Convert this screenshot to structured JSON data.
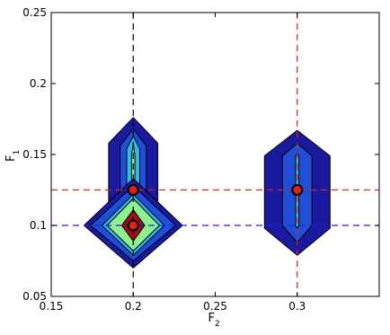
{
  "chart_data": {
    "type": "contour",
    "title": "",
    "xlabel": {
      "base": "F",
      "sub": "2"
    },
    "ylabel": {
      "base": "F",
      "sub": "1"
    },
    "xlim": [
      0.15,
      0.35
    ],
    "ylim": [
      0.05,
      0.25
    ],
    "x_ticks": [
      0.15,
      0.2,
      0.25,
      0.3
    ],
    "x_tick_labels": [
      "0.15",
      "0.2",
      "0.25",
      "0.3"
    ],
    "y_ticks": [
      0.05,
      0.1,
      0.15,
      0.2,
      0.25
    ],
    "y_tick_labels": [
      "0.05",
      "0.1",
      "0.15",
      "0.2",
      "0.25"
    ],
    "grid": false,
    "reference_lines": [
      {
        "orientation": "vertical",
        "value": 0.2,
        "color": "#000000",
        "style": "dashed"
      },
      {
        "orientation": "vertical",
        "value": 0.3,
        "color": "#e0201b",
        "style": "dashed"
      },
      {
        "orientation": "horizontal",
        "value": 0.125,
        "color": "#e0201b",
        "style": "dashed"
      },
      {
        "orientation": "horizontal",
        "value": 0.1,
        "color": "#2020d0",
        "style": "dashed"
      }
    ],
    "contour_groups": [
      {
        "name": "left-upper",
        "center": [
          0.2,
          0.125
        ],
        "levels": [
          {
            "fill": "#1a1aa0",
            "points": [
              [
                0.2,
                0.176
              ],
              [
                0.215,
                0.158
              ],
              [
                0.215,
                0.095
              ],
              [
                0.2,
                0.077
              ],
              [
                0.185,
                0.095
              ],
              [
                0.185,
                0.158
              ]
            ]
          },
          {
            "fill": "#1f4fd8",
            "points": [
              [
                0.2,
                0.168
              ],
              [
                0.208,
                0.156
              ],
              [
                0.208,
                0.097
              ],
              [
                0.2,
                0.085
              ],
              [
                0.192,
                0.097
              ],
              [
                0.192,
                0.156
              ]
            ]
          },
          {
            "fill": "#2fb8ec",
            "points": [
              [
                0.2,
                0.163
              ],
              [
                0.204,
                0.154
              ],
              [
                0.204,
                0.099
              ],
              [
                0.2,
                0.09
              ],
              [
                0.196,
                0.099
              ],
              [
                0.196,
                0.154
              ]
            ]
          },
          {
            "fill": "#8ef08e",
            "points": [
              [
                0.2,
                0.157
              ],
              [
                0.201,
                0.15
              ],
              [
                0.201,
                0.1
              ],
              [
                0.2,
                0.095
              ],
              [
                0.199,
                0.1
              ],
              [
                0.199,
                0.15
              ]
            ]
          }
        ]
      },
      {
        "name": "left-lower",
        "center": [
          0.2,
          0.1
        ],
        "levels": [
          {
            "fill": "#1a1aa0",
            "points": [
              [
                0.2,
                0.133
              ],
              [
                0.23,
                0.1
              ],
              [
                0.2,
                0.07
              ],
              [
                0.17,
                0.1
              ]
            ]
          },
          {
            "fill": "#1f4fd8",
            "points": [
              [
                0.2,
                0.128
              ],
              [
                0.226,
                0.1
              ],
              [
                0.2,
                0.075
              ],
              [
                0.174,
                0.1
              ]
            ]
          },
          {
            "fill": "#2fb8ec",
            "points": [
              [
                0.2,
                0.122
              ],
              [
                0.219,
                0.1
              ],
              [
                0.2,
                0.079
              ],
              [
                0.181,
                0.1
              ]
            ]
          },
          {
            "fill": "#8ef08e",
            "points": [
              [
                0.2,
                0.119
              ],
              [
                0.216,
                0.1
              ],
              [
                0.2,
                0.082
              ],
              [
                0.184,
                0.1
              ]
            ]
          },
          {
            "fill": "#9a0f1a",
            "points": [
              [
                0.2,
                0.111
              ],
              [
                0.207,
                0.1
              ],
              [
                0.2,
                0.089
              ],
              [
                0.193,
                0.1
              ]
            ]
          }
        ]
      },
      {
        "name": "right",
        "center": [
          0.3,
          0.125
        ],
        "levels": [
          {
            "fill": "#1a1aa0",
            "points": [
              [
                0.3,
                0.167
              ],
              [
                0.32,
                0.149
              ],
              [
                0.32,
                0.098
              ],
              [
                0.3,
                0.079
              ],
              [
                0.28,
                0.098
              ],
              [
                0.28,
                0.149
              ]
            ]
          },
          {
            "fill": "#1f4fd8",
            "points": [
              [
                0.3,
                0.158
              ],
              [
                0.309,
                0.149
              ],
              [
                0.309,
                0.1
              ],
              [
                0.3,
                0.088
              ],
              [
                0.291,
                0.1
              ],
              [
                0.291,
                0.149
              ]
            ]
          },
          {
            "fill": "#2fb8ec",
            "points": [
              [
                0.3,
                0.151
              ],
              [
                0.301,
                0.149
              ],
              [
                0.301,
                0.1
              ],
              [
                0.3,
                0.098
              ],
              [
                0.299,
                0.1
              ],
              [
                0.299,
                0.149
              ]
            ]
          }
        ]
      }
    ],
    "markers": [
      {
        "x": 0.2,
        "y": 0.125,
        "fill": "#e0201b"
      },
      {
        "x": 0.2,
        "y": 0.1,
        "fill": "#e0201b"
      },
      {
        "x": 0.3,
        "y": 0.125,
        "fill": "#e0201b"
      }
    ]
  }
}
